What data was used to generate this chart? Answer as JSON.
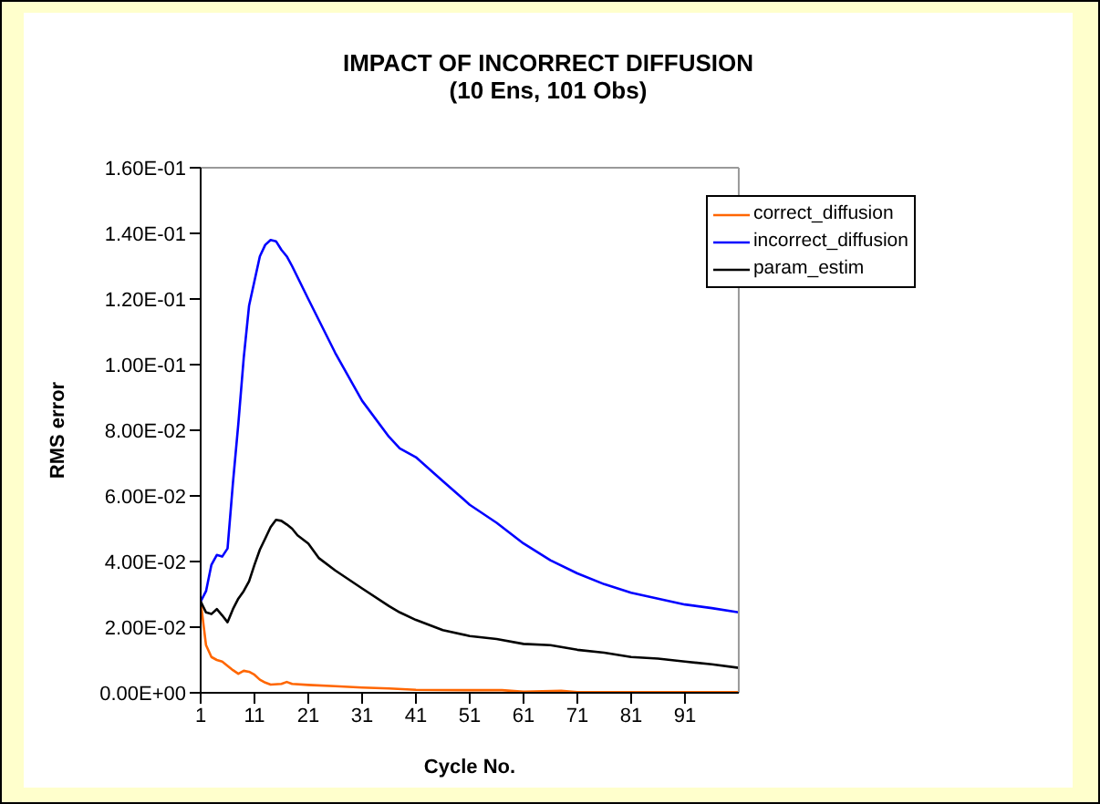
{
  "chart_data": {
    "type": "line",
    "title": "IMPACT OF INCORRECT DIFFUSION",
    "subtitle": "(10 Ens, 101 Obs)",
    "xlabel": "Cycle No.",
    "ylabel": "RMS error",
    "xlim": [
      1,
      101
    ],
    "xticks": [
      1,
      11,
      21,
      31,
      41,
      51,
      61,
      71,
      81,
      91
    ],
    "ylim": [
      0,
      0.16
    ],
    "yticks": [
      {
        "value": 0,
        "label": "0.00E+00"
      },
      {
        "value": 0.02,
        "label": "2.00E-02"
      },
      {
        "value": 0.04,
        "label": "4.00E-02"
      },
      {
        "value": 0.06,
        "label": "6.00E-02"
      },
      {
        "value": 0.08,
        "label": "8.00E-02"
      },
      {
        "value": 0.1,
        "label": "1.00E-01"
      },
      {
        "value": 0.12,
        "label": "1.20E-01"
      },
      {
        "value": 0.14,
        "label": "1.40E-01"
      },
      {
        "value": 0.16,
        "label": "1.60E-01"
      }
    ],
    "grid": false,
    "legend": "top right",
    "marker": "none",
    "line_style": "solid",
    "series": [
      {
        "name": "correct_diffusion",
        "color": "#ff6600",
        "x": [
          1,
          2,
          3,
          4,
          5,
          6,
          7,
          8,
          9,
          10,
          11,
          12,
          13,
          14,
          16,
          17,
          18,
          21,
          26,
          31,
          36,
          41,
          51,
          57,
          61,
          68,
          71,
          81,
          91,
          101
        ],
        "values": [
          0.0278,
          0.0145,
          0.0109,
          0.01,
          0.0095,
          0.0082,
          0.0069,
          0.0058,
          0.0067,
          0.0064,
          0.0055,
          0.004,
          0.0031,
          0.0025,
          0.0027,
          0.0033,
          0.0027,
          0.0024,
          0.002,
          0.0016,
          0.0013,
          0.0009,
          0.0008,
          0.0008,
          0.0003,
          0.0006,
          0.0002,
          0.0002,
          0.0002,
          0.0002
        ]
      },
      {
        "name": "incorrect_diffusion",
        "color": "#0000ff",
        "x": [
          1,
          2,
          3,
          4,
          5,
          6,
          7,
          8,
          9,
          10,
          11,
          12,
          13,
          14,
          15,
          16,
          17,
          18,
          21,
          26,
          31,
          36,
          38,
          41,
          46,
          51,
          56,
          61,
          66,
          71,
          76,
          81,
          86,
          91,
          96,
          101
        ],
        "values": [
          0.0278,
          0.031,
          0.039,
          0.042,
          0.0415,
          0.044,
          0.064,
          0.082,
          0.102,
          0.118,
          0.1255,
          0.133,
          0.1365,
          0.138,
          0.1376,
          0.135,
          0.133,
          0.13,
          0.12,
          0.1036,
          0.089,
          0.078,
          0.0745,
          0.0718,
          0.0645,
          0.0573,
          0.0518,
          0.0455,
          0.0404,
          0.0364,
          0.0331,
          0.0305,
          0.0287,
          0.0269,
          0.0258,
          0.0245
        ]
      },
      {
        "name": "param_estim",
        "color": "#000000",
        "x": [
          1,
          2,
          3,
          4,
          5,
          6,
          7,
          8,
          9,
          10,
          11,
          12,
          13,
          14,
          15,
          16,
          17,
          18,
          19,
          21,
          23,
          26,
          31,
          36,
          38,
          41,
          46,
          51,
          56,
          61,
          66,
          71,
          76,
          81,
          86,
          91,
          96,
          101
        ],
        "values": [
          0.0278,
          0.0245,
          0.024,
          0.0255,
          0.0236,
          0.0215,
          0.0255,
          0.0287,
          0.031,
          0.034,
          0.039,
          0.0436,
          0.047,
          0.0505,
          0.0527,
          0.0524,
          0.0513,
          0.05,
          0.048,
          0.0455,
          0.041,
          0.0373,
          0.0318,
          0.0264,
          0.0245,
          0.0222,
          0.0191,
          0.0173,
          0.0164,
          0.0149,
          0.0145,
          0.0131,
          0.0122,
          0.0109,
          0.0104,
          0.0095,
          0.0087,
          0.0076
        ]
      }
    ]
  }
}
